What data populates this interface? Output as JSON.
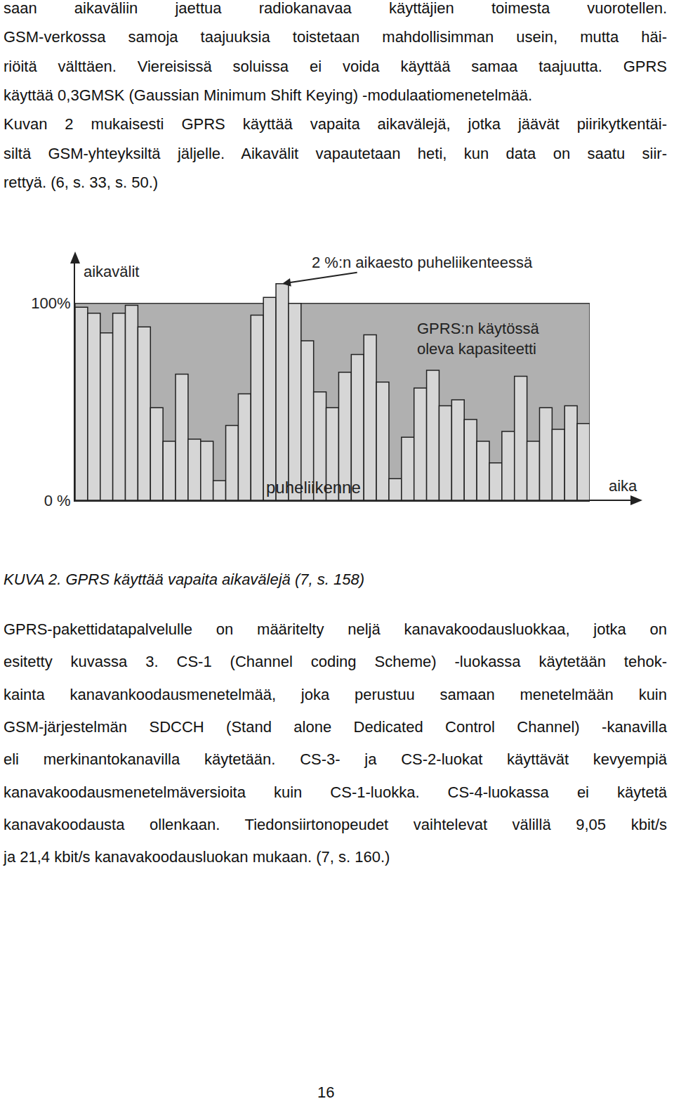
{
  "document": {
    "paragraphs_above": [
      [
        "saan aikaväliin jaettua radiokanavaa käyttäjien toimesta vuorotellen.",
        "GSM-verkossa samoja taajuuksia toistetaan mahdollisimman usein, mutta häi-",
        "riöitä välttäen. Viereisissä soluissa ei voida käyttää samaa taajuutta. GPRS",
        "käyttää 0,3GMSK (Gaussian Minimum Shift Keying) -modulaatiomenetelmää."
      ],
      [
        "Kuvan 2 mukaisesti GPRS käyttää vapaita aikavälejä, jotka jäävät piirikytkentäi-",
        "siltä GSM-yhteyksiltä jäljelle. Aikavälit vapautetaan heti, kun data on saatu siir-",
        "rettyä. (6, s. 33, s. 50.)"
      ]
    ],
    "figure_caption": "KUVA 2. GPRS käyttää vapaita aikavälejä (7, s. 158)",
    "paragraphs_below": [
      [
        "GPRS-pakettidatapalvelulle on määritelty neljä kanavakoodausluokkaa, jotka on",
        "esitetty kuvassa 3. CS-1 (Channel coding Scheme) -luokassa käytetään tehok-",
        "kainta kanavankoodausmenetelmää, joka perustuu samaan menetelmään kuin",
        "GSM-järjestelmän SDCCH (Stand alone Dedicated Control Channel) -kanavilla",
        "eli merkinantokanavilla käytetään. CS-3- ja CS-2-luokat käyttävät kevyempiä",
        "kanavakoodausmenetelmäversioita kuin CS-1-luokka. CS-4-luokassa ei käytetä",
        "kanavakoodausta ollenkaan. Tiedonsiirtonopeudet vaihtelevat välillä 9,05 kbit/s",
        "ja 21,4 kbit/s kanavakoodausluokan mukaan. (7, s. 160.)"
      ]
    ],
    "page_number": "16"
  },
  "chart_data": {
    "type": "bar",
    "x_label": "aika",
    "y_label": "aikavälit",
    "series_label": "puheliikenne",
    "capacity": 100,
    "capacity_label": [
      "GPRS:n käytössä",
      "oleva kapasiteetti"
    ],
    "blocking_label": "2 %:n aikaesto puheliikenteessä",
    "categories": [
      null,
      null,
      null,
      null,
      null,
      null,
      null,
      null,
      null,
      null,
      null,
      null,
      null,
      null,
      null,
      null,
      null,
      null,
      null,
      null,
      null,
      null,
      null,
      null,
      null,
      null,
      null,
      null,
      null,
      null,
      null,
      null,
      null,
      null,
      null,
      null,
      null,
      null,
      null,
      null,
      null
    ],
    "values": [
      98,
      95,
      85,
      95,
      99,
      88,
      47,
      30,
      64,
      31,
      30,
      10,
      38,
      54,
      94,
      103,
      110,
      100,
      81,
      55,
      47,
      65,
      74,
      84,
      60,
      11,
      32,
      57,
      66,
      48,
      51,
      41,
      30,
      19,
      35,
      63,
      30,
      47,
      36,
      48,
      39
    ],
    "color": "#d6d6d6",
    "ylim": [
      0,
      122
    ],
    "yticks": [
      {
        "value": 0,
        "label": "0 %"
      },
      {
        "value": 100,
        "label": "100%"
      }
    ],
    "grid": false,
    "tick_labels": "y"
  }
}
